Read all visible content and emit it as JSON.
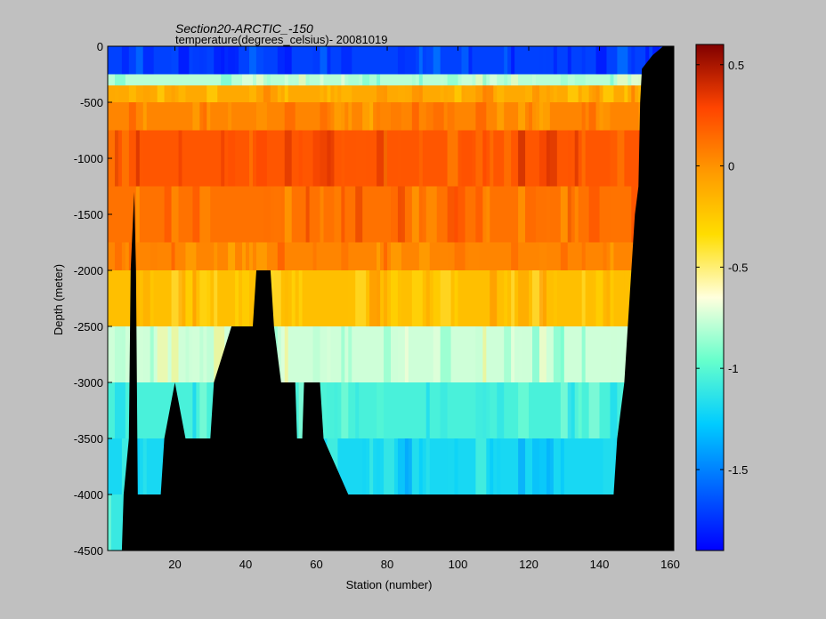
{
  "chart_data": {
    "type": "heatmap",
    "title": "Section20-ARCTIC_-150",
    "subtitle": "temperature(degrees_celsius)- 20081019",
    "xlabel": "Station (number)",
    "ylabel": "Depth (meter)",
    "xlim": [
      1,
      161
    ],
    "ylim": [
      -4500,
      0
    ],
    "x_ticks": [
      "20",
      "40",
      "60",
      "80",
      "100",
      "120",
      "140",
      "160"
    ],
    "y_ticks": [
      "0",
      "-500",
      "-1000",
      "-1500",
      "-2000",
      "-2500",
      "-3000",
      "-3500",
      "-4000",
      "-4500"
    ],
    "colorbar": {
      "clim": [
        -1.9,
        0.6
      ],
      "colormap": "jet",
      "ticks": [
        "0.5",
        "0",
        "-0.5",
        "-1",
        "-1.5"
      ]
    },
    "depth_levels": [
      {
        "top": 0,
        "bottom": -250,
        "value": -1.7
      },
      {
        "top": -250,
        "bottom": -350,
        "value": -0.8
      },
      {
        "top": -350,
        "bottom": -500,
        "value": -0.1
      },
      {
        "top": -500,
        "bottom": -750,
        "value": 0.05
      },
      {
        "top": -750,
        "bottom": -1250,
        "value": 0.22
      },
      {
        "top": -1250,
        "bottom": -1750,
        "value": 0.12
      },
      {
        "top": -1750,
        "bottom": -2000,
        "value": 0.05
      },
      {
        "top": -2000,
        "bottom": -2500,
        "value": -0.2
      },
      {
        "top": -2500,
        "bottom": -3000,
        "value": -0.75
      },
      {
        "top": -3000,
        "bottom": -3500,
        "value": -1.05
      },
      {
        "top": -3500,
        "bottom": -4000,
        "value": -1.2
      },
      {
        "top": -4000,
        "bottom": -4500,
        "value": -1.1
      }
    ],
    "bathymetry": [
      {
        "station": 1,
        "depth": -4500
      },
      {
        "station": 5,
        "depth": -4500
      },
      {
        "station": 5.5,
        "depth": -4000
      },
      {
        "station": 7,
        "depth": -3500
      },
      {
        "station": 7.5,
        "depth": -2000
      },
      {
        "station": 8.5,
        "depth": -1300
      },
      {
        "station": 9,
        "depth": -2000
      },
      {
        "station": 9.5,
        "depth": -4000
      },
      {
        "station": 16,
        "depth": -4000
      },
      {
        "station": 17,
        "depth": -3500
      },
      {
        "station": 20,
        "depth": -3000
      },
      {
        "station": 23,
        "depth": -3500
      },
      {
        "station": 30,
        "depth": -3500
      },
      {
        "station": 31,
        "depth": -3000
      },
      {
        "station": 36,
        "depth": -2500
      },
      {
        "station": 42,
        "depth": -2500
      },
      {
        "station": 43,
        "depth": -2000
      },
      {
        "station": 47,
        "depth": -2000
      },
      {
        "station": 48,
        "depth": -2500
      },
      {
        "station": 50,
        "depth": -3000
      },
      {
        "station": 54,
        "depth": -3000
      },
      {
        "station": 54.5,
        "depth": -3500
      },
      {
        "station": 56,
        "depth": -3500
      },
      {
        "station": 56.5,
        "depth": -3000
      },
      {
        "station": 61,
        "depth": -3000
      },
      {
        "station": 62,
        "depth": -3500
      },
      {
        "station": 69,
        "depth": -4000
      },
      {
        "station": 144,
        "depth": -4000
      },
      {
        "station": 145,
        "depth": -3500
      },
      {
        "station": 147,
        "depth": -3000
      },
      {
        "station": 148,
        "depth": -2500
      },
      {
        "station": 149,
        "depth": -2000
      },
      {
        "station": 150,
        "depth": -1500
      },
      {
        "station": 151,
        "depth": -1250
      },
      {
        "station": 151.5,
        "depth": -500
      },
      {
        "station": 152,
        "depth": -200
      },
      {
        "station": 155,
        "depth": -80
      },
      {
        "station": 158,
        "depth": 0
      },
      {
        "station": 161,
        "depth": 0
      }
    ]
  }
}
